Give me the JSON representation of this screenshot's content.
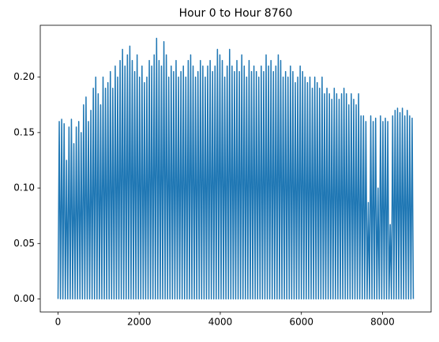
{
  "chart_data": {
    "type": "line",
    "title": "Hour 0 to Hour 8760",
    "color": "#1f77b4",
    "grid": false,
    "xlim": [
      -438,
      9198
    ],
    "ylim": [
      -0.01175,
      0.24675
    ],
    "xticks": [
      0,
      2000,
      4000,
      6000,
      8000
    ],
    "yticks": [
      {
        "value": 0,
        "label": "0.00"
      },
      {
        "value": 0.05,
        "label": "0.05"
      },
      {
        "value": 0.1,
        "label": "0.10"
      },
      {
        "value": 0.15,
        "label": "0.15"
      },
      {
        "value": 0.2,
        "label": "0.20"
      }
    ],
    "x": [
      0,
      30,
      60,
      90,
      120,
      150,
      180,
      210,
      240,
      270,
      300,
      330,
      360,
      390,
      420,
      450,
      480,
      510,
      540,
      570,
      600,
      630,
      660,
      690,
      720,
      750,
      780,
      810,
      840,
      870,
      900,
      930,
      960,
      990,
      1020,
      1050,
      1080,
      1110,
      1140,
      1170,
      1200,
      1230,
      1260,
      1290,
      1320,
      1350,
      1380,
      1410,
      1440,
      1470,
      1500,
      1530,
      1560,
      1590,
      1620,
      1650,
      1680,
      1710,
      1740,
      1770,
      1800,
      1830,
      1860,
      1890,
      1920,
      1950,
      1980,
      2010,
      2040,
      2070,
      2100,
      2130,
      2160,
      2190,
      2220,
      2250,
      2280,
      2310,
      2340,
      2370,
      2400,
      2430,
      2460,
      2490,
      2520,
      2550,
      2580,
      2610,
      2640,
      2670,
      2700,
      2730,
      2760,
      2790,
      2820,
      2850,
      2880,
      2910,
      2940,
      2970,
      3000,
      3030,
      3060,
      3090,
      3120,
      3150,
      3180,
      3210,
      3240,
      3270,
      3300,
      3330,
      3360,
      3390,
      3420,
      3450,
      3480,
      3510,
      3540,
      3570,
      3600,
      3630,
      3660,
      3690,
      3720,
      3750,
      3780,
      3810,
      3840,
      3870,
      3900,
      3930,
      3960,
      3990,
      4020,
      4050,
      4080,
      4110,
      4140,
      4170,
      4200,
      4230,
      4260,
      4290,
      4320,
      4350,
      4380,
      4410,
      4440,
      4470,
      4500,
      4530,
      4560,
      4590,
      4620,
      4650,
      4680,
      4710,
      4740,
      4770,
      4800,
      4830,
      4860,
      4890,
      4920,
      4950,
      4980,
      5010,
      5040,
      5070,
      5100,
      5130,
      5160,
      5190,
      5220,
      5250,
      5280,
      5310,
      5340,
      5370,
      5400,
      5430,
      5460,
      5490,
      5520,
      5550,
      5580,
      5610,
      5640,
      5670,
      5700,
      5730,
      5760,
      5790,
      5820,
      5850,
      5880,
      5910,
      5940,
      5970,
      6000,
      6030,
      6060,
      6090,
      6120,
      6150,
      6180,
      6210,
      6240,
      6270,
      6300,
      6330,
      6360,
      6390,
      6420,
      6450,
      6480,
      6510,
      6540,
      6570,
      6600,
      6630,
      6660,
      6690,
      6720,
      6750,
      6780,
      6810,
      6840,
      6870,
      6900,
      6930,
      6960,
      6990,
      7020,
      7050,
      7080,
      7110,
      7140,
      7170,
      7200,
      7230,
      7260,
      7290,
      7320,
      7350,
      7380,
      7410,
      7440,
      7470,
      7500,
      7530,
      7560,
      7590,
      7620,
      7650,
      7680,
      7710,
      7740,
      7770,
      7800,
      7830,
      7860,
      7890,
      7920,
      7950,
      7980,
      8010,
      8040,
      8070,
      8100,
      8130,
      8160,
      8190,
      8220,
      8250,
      8280,
      8310,
      8340,
      8370,
      8400,
      8430,
      8460,
      8490,
      8520,
      8550,
      8580,
      8610,
      8640,
      8670,
      8700,
      8730,
      8760
    ],
    "values": [
      0,
      0.16,
      0,
      0.162,
      0,
      0.158,
      0,
      0.125,
      0,
      0.155,
      0,
      0.162,
      0,
      0.14,
      0,
      0.155,
      0,
      0.16,
      0,
      0.15,
      0,
      0.175,
      0,
      0.182,
      0,
      0.16,
      0,
      0.17,
      0,
      0.19,
      0,
      0.2,
      0,
      0.185,
      0,
      0.175,
      0,
      0.2,
      0,
      0.19,
      0,
      0.195,
      0,
      0.205,
      0,
      0.19,
      0,
      0.21,
      0,
      0.2,
      0,
      0.215,
      0,
      0.225,
      0,
      0.21,
      0,
      0.22,
      0,
      0.228,
      0,
      0.215,
      0,
      0.205,
      0,
      0.22,
      0,
      0.2,
      0,
      0.21,
      0,
      0.195,
      0,
      0.2,
      0,
      0.215,
      0,
      0.21,
      0,
      0.22,
      0,
      0.235,
      0,
      0.215,
      0,
      0.21,
      0,
      0.232,
      0,
      0.22,
      0,
      0.2,
      0,
      0.21,
      0,
      0.205,
      0,
      0.215,
      0,
      0.2,
      0,
      0.205,
      0,
      0.21,
      0,
      0.2,
      0,
      0.215,
      0,
      0.22,
      0,
      0.21,
      0,
      0.2,
      0,
      0.205,
      0,
      0.215,
      0,
      0.21,
      0,
      0.2,
      0,
      0.21,
      0,
      0.215,
      0,
      0.205,
      0,
      0.21,
      0,
      0.225,
      0,
      0.22,
      0,
      0.215,
      0,
      0.2,
      0,
      0.21,
      0,
      0.225,
      0,
      0.21,
      0,
      0.205,
      0,
      0.215,
      0,
      0.205,
      0,
      0.22,
      0,
      0.21,
      0,
      0.2,
      0,
      0.215,
      0,
      0.205,
      0,
      0.21,
      0,
      0.205,
      0,
      0.2,
      0,
      0.21,
      0,
      0.205,
      0,
      0.22,
      0,
      0.21,
      0,
      0.215,
      0,
      0.205,
      0,
      0.21,
      0,
      0.22,
      0,
      0.215,
      0,
      0.2,
      0,
      0.205,
      0,
      0.2,
      0,
      0.21,
      0,
      0.205,
      0,
      0.195,
      0,
      0.2,
      0,
      0.21,
      0,
      0.205,
      0,
      0.2,
      0,
      0.195,
      0,
      0.2,
      0,
      0.19,
      0,
      0.2,
      0,
      0.195,
      0,
      0.19,
      0,
      0.2,
      0,
      0.185,
      0,
      0.19,
      0,
      0.185,
      0,
      0.18,
      0,
      0.19,
      0,
      0.185,
      0,
      0.18,
      0,
      0.185,
      0,
      0.19,
      0,
      0.185,
      0,
      0.175,
      0,
      0.185,
      0,
      0.18,
      0,
      0.175,
      0,
      0.185,
      0,
      0.165,
      0,
      0.165,
      0,
      0.16,
      0,
      0.087,
      0,
      0.165,
      0,
      0.16,
      0,
      0.163,
      0,
      0.1,
      0,
      0.165,
      0,
      0.16,
      0,
      0.163,
      0,
      0.16,
      0,
      0.067,
      0,
      0.165,
      0,
      0.17,
      0,
      0.172,
      0,
      0.168,
      0,
      0.172,
      0,
      0.165,
      0,
      0.17,
      0,
      0.165,
      0,
      0.163,
      0
    ]
  }
}
